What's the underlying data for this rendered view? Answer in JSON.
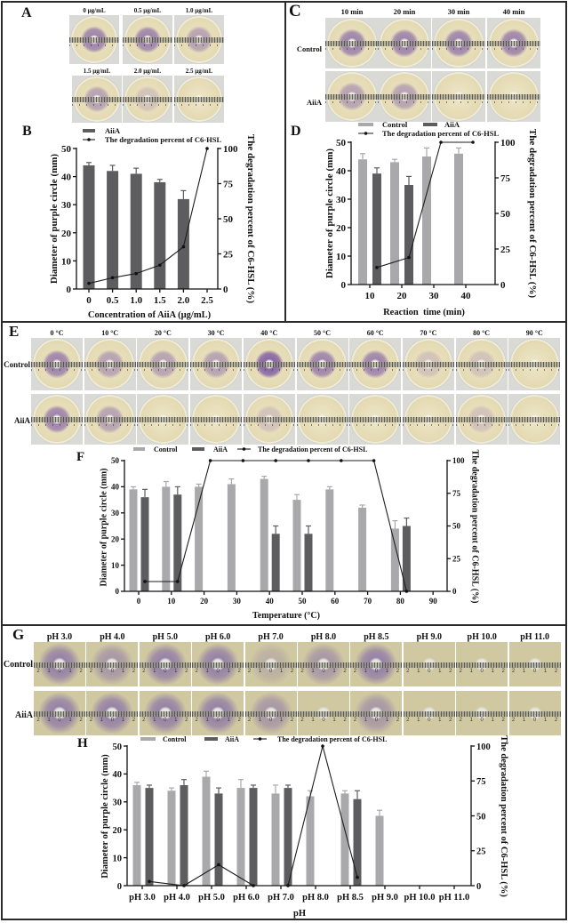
{
  "panels": {
    "A": {
      "letter": "A",
      "plates": [
        {
          "label": "0 µg/mL"
        },
        {
          "label": "0.5 µg/mL"
        },
        {
          "label": "1.0 µg/mL"
        },
        {
          "label": "1.5 µg/mL"
        },
        {
          "label": "2.0 µg/mL"
        },
        {
          "label": "2.5 µg/mL"
        }
      ]
    },
    "B": {
      "letter": "B"
    },
    "C": {
      "letter": "C",
      "columns": [
        "10 min",
        "20 min",
        "30 min",
        "40 min"
      ],
      "rows": [
        "Control",
        "AiiA"
      ]
    },
    "D": {
      "letter": "D"
    },
    "E": {
      "letter": "E",
      "columns": [
        "0 °C",
        "10 °C",
        "20 °C",
        "30 °C",
        "40 °C",
        "50 °C",
        "60 °C",
        "70 °C",
        "80 °C",
        "90 °C"
      ],
      "rows": [
        "Control",
        "AiiA"
      ]
    },
    "F": {
      "letter": "F"
    },
    "G": {
      "letter": "G",
      "columns": [
        "pH 3.0",
        "pH 4.0",
        "pH 5.0",
        "pH 6.0",
        "pH 7.0",
        "pH 8.0",
        "pH 8.5",
        "pH 9.0",
        "pH 10.0",
        "pH 11.0"
      ],
      "rows": [
        "Control",
        "AiiA"
      ],
      "ruler_scale": "2 1 0 1 2"
    },
    "H": {
      "letter": "H"
    }
  },
  "colors": {
    "control_bar": "#a9a9ab",
    "aiia_bar": "#5d5d5f",
    "degradation_line": "#1c1c1c",
    "stain_purple": "#76529f",
    "frame": "#2a2a2a"
  },
  "chart_data": [
    {
      "panel": "B",
      "type": "bar",
      "title": "",
      "categories": [
        "0",
        "0.5",
        "1.0",
        "1.5",
        "2.0",
        "2.5"
      ],
      "series": [
        {
          "name": "AiiA",
          "kind": "bar",
          "axis": "left",
          "values": [
            44,
            42,
            41,
            38,
            32,
            null
          ],
          "errors": [
            1,
            2,
            2,
            1,
            3,
            null
          ]
        },
        {
          "name": "The degradation percent of C6-HSL",
          "kind": "line",
          "axis": "right",
          "values": [
            4,
            8,
            11,
            17,
            30,
            100
          ]
        }
      ],
      "xlabel": "Concentration of AiiA (µg/mL)",
      "ylabel": "Diameter of purple circle (mm)",
      "y2label": "The degradation percent of C6-HSL (%)",
      "ylim": [
        0,
        50
      ],
      "y2lim": [
        0,
        100
      ],
      "yticks": [
        0,
        10,
        20,
        30,
        40,
        50
      ],
      "y2ticks": [
        0,
        25,
        50,
        75,
        100
      ],
      "legend": "top-left",
      "grid": false
    },
    {
      "panel": "D",
      "type": "bar",
      "title": "",
      "categories": [
        "10",
        "20",
        "30",
        "40"
      ],
      "series": [
        {
          "name": "Control",
          "kind": "bar",
          "axis": "left",
          "values": [
            44,
            43,
            45,
            46
          ],
          "errors": [
            2,
            1,
            3,
            2
          ]
        },
        {
          "name": "AiiA",
          "kind": "bar",
          "axis": "left",
          "values": [
            39,
            35,
            null,
            null
          ],
          "errors": [
            2,
            3,
            null,
            null
          ]
        },
        {
          "name": "The degradation percent of C6-HSL",
          "kind": "line",
          "axis": "right",
          "values": [
            12,
            19,
            100,
            100
          ]
        }
      ],
      "xlabel": "Reaction  time (min)",
      "ylabel": "Diameter of purple circle (mm)",
      "y2label": "The degradation percent of C6-HSL (%)",
      "ylim": [
        0,
        50
      ],
      "y2lim": [
        0,
        100
      ],
      "yticks": [
        0,
        10,
        20,
        30,
        40,
        50
      ],
      "y2ticks": [
        0,
        25,
        50,
        75,
        100
      ],
      "legend": "top",
      "grid": false
    },
    {
      "panel": "F",
      "type": "bar",
      "title": "",
      "categories": [
        "0",
        "10",
        "20",
        "30",
        "40",
        "50",
        "60",
        "70",
        "80",
        "90"
      ],
      "series": [
        {
          "name": "Control",
          "kind": "bar",
          "axis": "left",
          "values": [
            39,
            40,
            40,
            41,
            43,
            35,
            39,
            32,
            24,
            null
          ],
          "errors": [
            1,
            2,
            1,
            2,
            1,
            2,
            1,
            1,
            3,
            null
          ]
        },
        {
          "name": "AiiA",
          "kind": "bar",
          "axis": "left",
          "values": [
            36,
            37,
            null,
            null,
            22,
            22,
            null,
            null,
            25,
            null
          ],
          "errors": [
            3,
            3,
            null,
            null,
            3,
            3,
            null,
            null,
            3,
            null
          ]
        },
        {
          "name": "The degradation percent of C6-HSL",
          "kind": "line",
          "axis": "right",
          "values": [
            7.5,
            7.5,
            100,
            100,
            100,
            100,
            100,
            100,
            0,
            null
          ]
        }
      ],
      "xlabel": "Temperature (°C)",
      "ylabel": "Diameter of purple circle (mm)",
      "y2label": "The degradation percent of C6-HSL (%)",
      "ylim": [
        0,
        50
      ],
      "y2lim": [
        0,
        100
      ],
      "yticks": [
        0,
        10,
        20,
        30,
        40,
        50
      ],
      "y2ticks": [
        0,
        25,
        50,
        75,
        100
      ],
      "legend": "top",
      "grid": false
    },
    {
      "panel": "H",
      "type": "bar",
      "title": "",
      "categories": [
        "pH 3.0",
        "pH 4.0",
        "pH 5.0",
        "pH 6.0",
        "pH 7.0",
        "pH 8.0",
        "pH 8.5",
        "pH 9.0",
        "pH 10.0",
        "pH 11.0"
      ],
      "series": [
        {
          "name": "Control",
          "kind": "bar",
          "axis": "left",
          "values": [
            36,
            34,
            39,
            35,
            33,
            32,
            33,
            25,
            null,
            null
          ],
          "errors": [
            1,
            1,
            2,
            3,
            3,
            2,
            1,
            2,
            null,
            null
          ]
        },
        {
          "name": "AiiA",
          "kind": "bar",
          "axis": "left",
          "values": [
            35,
            36,
            33,
            35,
            35,
            null,
            31,
            null,
            null,
            null
          ],
          "errors": [
            1,
            2,
            2,
            1,
            1,
            null,
            3,
            null,
            null,
            null
          ]
        },
        {
          "name": "The degradation percent of C6-HSL",
          "kind": "line",
          "axis": "right",
          "values": [
            3,
            0,
            15,
            0,
            0,
            100,
            6,
            null,
            null,
            null
          ]
        }
      ],
      "xlabel": "pH",
      "ylabel": "Diameter of purple circle (mm)",
      "y2label": "The degradation percent of C6-HSL (%)",
      "ylim": [
        0,
        50
      ],
      "y2lim": [
        0,
        100
      ],
      "yticks": [
        0,
        10,
        20,
        30,
        40,
        50
      ],
      "y2ticks": [
        0,
        25,
        50,
        75,
        100
      ],
      "legend": "top",
      "grid": false
    }
  ]
}
